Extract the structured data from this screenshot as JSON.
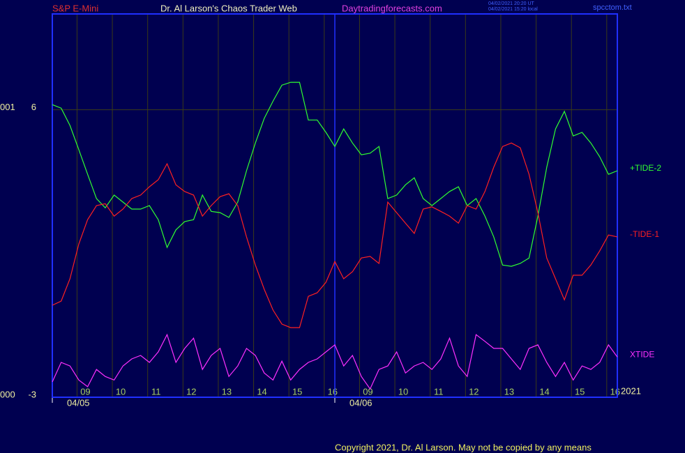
{
  "chart_data": {
    "type": "line",
    "title": "Dr. Al Larson's Chaos Trader Web",
    "header_left": "S&P E-Mini",
    "header_right": "Daytradingforecasts.com",
    "timestamps": [
      "04/02/2021 20:20 UT",
      "04/02/2021 15:20 local"
    ],
    "file_name": "spcctom.txt",
    "year_label": "2021",
    "footer": "Copyright 2021, Dr. Al Larson. May not be copied by any means",
    "xlim": [
      0,
      16
    ],
    "xticks": [
      {
        "value": 0.7,
        "label": "09"
      },
      {
        "value": 1.7,
        "label": "10"
      },
      {
        "value": 2.7,
        "label": "11"
      },
      {
        "value": 3.7,
        "label": "12"
      },
      {
        "value": 4.7,
        "label": "13"
      },
      {
        "value": 5.7,
        "label": "14"
      },
      {
        "value": 6.7,
        "label": "15"
      },
      {
        "value": 7.7,
        "label": "16"
      },
      {
        "value": 8.7,
        "label": "09"
      },
      {
        "value": 9.7,
        "label": "10"
      },
      {
        "value": 10.7,
        "label": "11"
      },
      {
        "value": 11.7,
        "label": "12"
      },
      {
        "value": 12.7,
        "label": "13"
      },
      {
        "value": 13.7,
        "label": "14"
      },
      {
        "value": 14.7,
        "label": "15"
      },
      {
        "value": 15.7,
        "label": "16"
      }
    ],
    "date_ticks": [
      {
        "value": 0,
        "label": "04/05"
      },
      {
        "value": 8,
        "label": "04/06"
      }
    ],
    "ylim": [
      -3,
      9
    ],
    "yticks": [
      -3,
      6
    ],
    "y_side_labels": [
      {
        "value": 6,
        "label": "001"
      },
      {
        "value": -3,
        "label": "000"
      }
    ],
    "grid": true,
    "x": [
      0,
      0.25,
      0.5,
      0.75,
      1,
      1.25,
      1.5,
      1.75,
      2,
      2.25,
      2.5,
      2.75,
      3,
      3.25,
      3.5,
      3.75,
      4,
      4.25,
      4.5,
      4.75,
      5,
      5.25,
      5.5,
      5.75,
      6,
      6.25,
      6.5,
      6.75,
      7,
      7.25,
      7.5,
      7.75,
      8,
      8.25,
      8.5,
      8.75,
      9,
      9.25,
      9.5,
      9.75,
      10,
      10.25,
      10.5,
      10.75,
      11,
      11.25,
      11.5,
      11.75,
      12,
      12.25,
      12.5,
      12.75,
      13,
      13.25,
      13.5,
      13.75,
      14,
      14.25,
      14.5,
      14.75,
      15,
      15.25,
      15.5,
      15.75,
      16
    ],
    "series": [
      {
        "name": "+TIDE-2",
        "color": "#30ff30",
        "values": [
          6.16,
          6.05,
          5.51,
          4.75,
          3.98,
          3.22,
          2.93,
          3.33,
          3.11,
          2.89,
          2.89,
          3.0,
          2.56,
          1.69,
          2.24,
          2.5,
          2.56,
          3.33,
          2.82,
          2.78,
          2.63,
          3.11,
          4.09,
          4.96,
          5.73,
          6.27,
          6.77,
          6.86,
          6.86,
          5.68,
          5.68,
          5.29,
          4.85,
          5.4,
          4.96,
          4.59,
          4.64,
          4.85,
          3.22,
          3.33,
          3.65,
          3.87,
          3.22,
          3.0,
          3.22,
          3.44,
          3.59,
          3.0,
          3.22,
          2.67,
          2.02,
          1.14,
          1.1,
          1.19,
          1.36,
          2.67,
          4.2,
          5.4,
          5.95,
          5.18,
          5.29,
          4.96,
          4.53,
          3.98,
          4.09
        ]
      },
      {
        "name": "-TIDE-1",
        "color": "#ff2020",
        "values": [
          -0.12,
          0.01,
          0.71,
          1.8,
          2.56,
          3.0,
          3.06,
          2.67,
          2.89,
          3.22,
          3.33,
          3.59,
          3.81,
          4.31,
          3.65,
          3.44,
          3.33,
          2.67,
          3.0,
          3.28,
          3.37,
          3.0,
          2.02,
          1.14,
          0.38,
          -0.27,
          -0.71,
          -0.82,
          -0.82,
          0.16,
          0.27,
          0.6,
          1.25,
          0.71,
          0.93,
          1.36,
          1.41,
          1.19,
          3.11,
          2.78,
          2.45,
          2.13,
          2.89,
          2.96,
          2.82,
          2.67,
          2.45,
          3.0,
          2.89,
          3.44,
          4.2,
          4.85,
          4.96,
          4.81,
          3.98,
          2.78,
          1.36,
          0.71,
          0.05,
          0.82,
          0.82,
          1.14,
          1.58,
          2.08,
          2.02
        ]
      },
      {
        "name": "XTIDE",
        "color": "#ff30ff",
        "values": [
          -2.52,
          -1.91,
          -2.02,
          -2.46,
          -2.67,
          -2.13,
          -2.35,
          -2.46,
          -2.02,
          -1.8,
          -1.69,
          -1.91,
          -1.58,
          -1.04,
          -1.91,
          -1.47,
          -1.15,
          -2.13,
          -1.69,
          -1.47,
          -2.35,
          -2.02,
          -1.47,
          -1.69,
          -2.24,
          -2.46,
          -1.87,
          -2.46,
          -2.13,
          -1.91,
          -1.8,
          -1.58,
          -1.36,
          -2.02,
          -1.69,
          -2.35,
          -2.74,
          -2.13,
          -2.02,
          -1.58,
          -2.24,
          -2.02,
          -1.91,
          -2.13,
          -1.8,
          -1.15,
          -2.02,
          -2.35,
          -1.04,
          -1.25,
          -1.47,
          -1.47,
          -1.8,
          -2.13,
          -1.47,
          -1.36,
          -1.91,
          -2.35,
          -1.91,
          -2.46,
          -2.02,
          -2.13,
          -1.91,
          -1.36,
          -1.74
        ]
      }
    ]
  }
}
